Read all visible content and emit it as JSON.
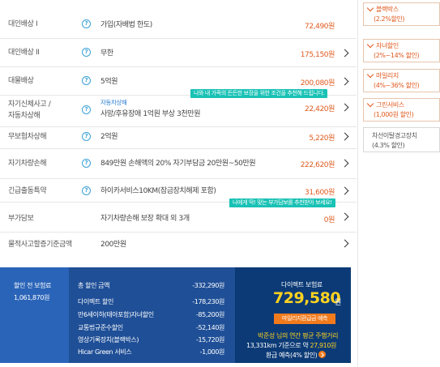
{
  "rows": [
    {
      "label": "대인배상 I",
      "desc": "가입(자배법 한도)",
      "price": "72,490원",
      "arrow": false
    },
    {
      "label": "대인배상 II",
      "desc": "무한",
      "price": "175,150원",
      "arrow": true
    },
    {
      "label": "대물배상",
      "desc": "5억원",
      "price": "200,080원",
      "arrow": true
    },
    {
      "label1": "자기신체사고 /",
      "label2": "자동차상해",
      "sub": "자동차상해",
      "desc": "사망/후유장애 1억원 부상 3천만원",
      "price": "22,420원",
      "arrow": true
    },
    {
      "label": "무보험차상해",
      "desc": "2억원",
      "price": "5,220원",
      "arrow": true
    },
    {
      "label": "자기차량손해",
      "desc": "849만원 손해액의 20% 자기부담금 20만원~50만원",
      "price": "222,620원",
      "arrow": true
    },
    {
      "label": "긴급출동특약",
      "desc": "하이카서비스10KM(잠금장치해제 포함)",
      "price": "31,600원",
      "arrow": true
    },
    {
      "label": "부가담보",
      "desc": "자기차량손해 보장 확대 외 3개",
      "price": "0원",
      "arrow": true
    },
    {
      "label": "물적사고할증기준금액",
      "desc": "200만원",
      "price": "",
      "arrow": true
    }
  ],
  "tips": {
    "tip1": "나와 내 가족의 든든한 보장을 위한 조건을 추천해 드립니다.",
    "tip2": "나에게 딱! 맞는 부가담보를 추천받아 보세요!"
  },
  "help_glyph": "?",
  "summary": {
    "before_label": "할인 전 보험료",
    "before_value": "1,061,870원",
    "total_label": "총 할인 금액",
    "total_value": "-332,290원",
    "items": [
      {
        "name": "다이렉트 할인",
        "value": "-178,230원"
      },
      {
        "name": "만6세이하(태아포함)자녀할인",
        "value": "-85,200원"
      },
      {
        "name": "교통법규준수할인",
        "value": "-52,140원"
      },
      {
        "name": "영상기록장치(블랙박스)",
        "value": "-15,720원"
      },
      {
        "name": "Hicar Green 서비스",
        "value": "-1,000원"
      }
    ],
    "direct_label": "다이렉트 보험료",
    "direct_value": "729,580",
    "direct_won": "원",
    "button": "마일리지환급금 예측",
    "note1": "박준성 님의 연간 평균 주행거리",
    "note2_pre": "13,331km 기준으로 약 ",
    "note2_val": "27,910원",
    "note3": "환급 예측(4% 할인)"
  },
  "options": [
    {
      "name": "블랙박스",
      "detail": "(2.2%할인)",
      "checked": true
    },
    {
      "name": "자녀할인",
      "detail": "(2%~14% 할인)",
      "checked": true
    },
    {
      "name": "마일리지",
      "detail": "(4%~36% 할인)",
      "checked": true
    },
    {
      "name": "그린서비스",
      "detail": "(1,000원 할인)",
      "checked": true
    },
    {
      "name": "차선이탈경고장치",
      "detail": "(4.3% 할인)",
      "checked": false
    }
  ],
  "colors": {
    "accent": "#e05a1e",
    "help": "#3aa0d8",
    "tip": "#19c2b5",
    "summary_bg": "#1f4f97",
    "highlight": "#ffd21f"
  }
}
